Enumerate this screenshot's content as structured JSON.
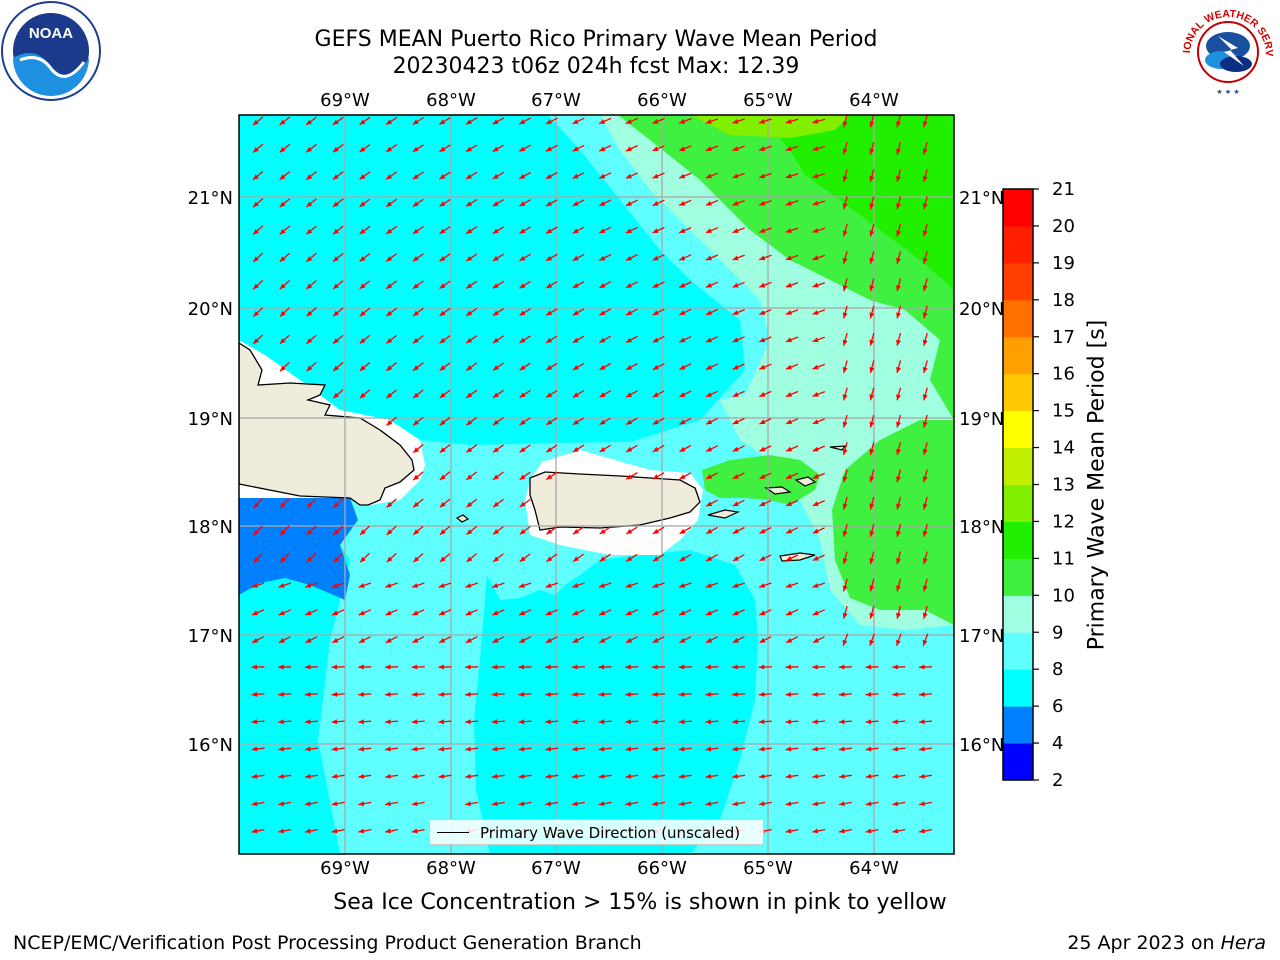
{
  "title": {
    "line1": "GEFS MEAN Puerto Rico Primary Wave Mean Period",
    "line2": "20230423 t06z 024h fcst   Max: 12.39"
  },
  "logos": {
    "left": "NOAA",
    "right": "NATIONAL WEATHER SERVICE"
  },
  "map": {
    "lon_labels": [
      "69°W",
      "68°W",
      "67°W",
      "66°W",
      "65°W",
      "64°W"
    ],
    "lat_labels": [
      "21°N",
      "20°N",
      "19°N",
      "18°N",
      "17°N",
      "16°N"
    ],
    "arrow_color": "#ff0000",
    "land_color": "#efecdc",
    "legend_label": "Primary Wave Direction (unscaled)"
  },
  "colorbar": {
    "title": "Primary Wave Mean Period [s]",
    "ticks": [
      "2",
      "4",
      "6",
      "8",
      "9",
      "10",
      "11",
      "12",
      "13",
      "14",
      "15",
      "16",
      "17",
      "18",
      "19",
      "20",
      "21"
    ],
    "colors": [
      "#0000ff",
      "#0080ff",
      "#00ffff",
      "#60ffff",
      "#a0ffe0",
      "#40f040",
      "#20f000",
      "#80f000",
      "#c0f000",
      "#ffff00",
      "#ffc800",
      "#ffa000",
      "#ff7000",
      "#ff4000",
      "#ff2000",
      "#ff0000"
    ]
  },
  "note": "Sea Ice Concentration > 15% is shown in pink to yellow",
  "footer": {
    "left": "NCEP/EMC/Verification Post Processing Product Generation Branch",
    "right_prefix": "25 Apr 2023 on ",
    "right_host": "Hera"
  }
}
